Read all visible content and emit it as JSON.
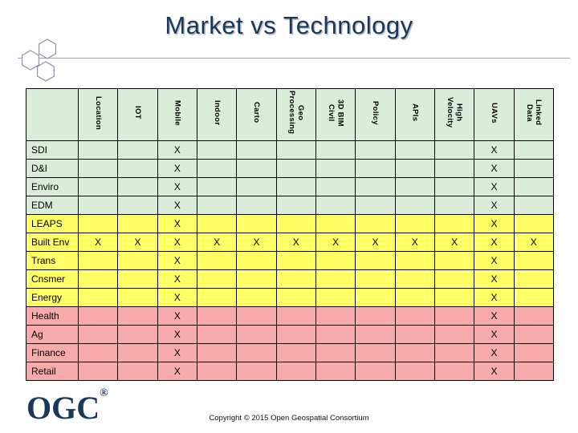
{
  "title": "Market vs Technology",
  "table": {
    "corner_label": "",
    "columns": [
      "Location",
      "IOT",
      "Mobile",
      "Indoor",
      "Carto",
      "Geo\nProcessing",
      "3D BIM\nCivil",
      "Policy",
      "APIs",
      "High\nVelocity",
      "UAVs",
      "Linked\nData"
    ],
    "mark_symbol": "X",
    "rows": [
      {
        "label": "SDI",
        "color_group": "green",
        "marked_columns": [
          2,
          10
        ]
      },
      {
        "label": "D&I",
        "color_group": "green",
        "marked_columns": [
          2,
          10
        ]
      },
      {
        "label": "Enviro",
        "color_group": "green",
        "marked_columns": [
          2,
          10
        ]
      },
      {
        "label": "EDM",
        "color_group": "green",
        "marked_columns": [
          2,
          10
        ]
      },
      {
        "label": "LEAPS",
        "color_group": "yellow",
        "marked_columns": [
          2,
          10
        ]
      },
      {
        "label": "Built Env",
        "color_group": "yellow",
        "marked_columns": [
          0,
          1,
          2,
          3,
          4,
          5,
          6,
          7,
          8,
          9,
          10,
          11
        ]
      },
      {
        "label": "Trans",
        "color_group": "yellow",
        "marked_columns": [
          2,
          10
        ]
      },
      {
        "label": "Cnsmer",
        "color_group": "yellow",
        "marked_columns": [
          2,
          10
        ]
      },
      {
        "label": "Energy",
        "color_group": "yellow",
        "marked_columns": [
          2,
          10
        ]
      },
      {
        "label": "Health",
        "color_group": "pink",
        "marked_columns": [
          2,
          10
        ]
      },
      {
        "label": "Ag",
        "color_group": "pink",
        "marked_columns": [
          2,
          10
        ]
      },
      {
        "label": "Finance",
        "color_group": "pink",
        "marked_columns": [
          2,
          10
        ]
      },
      {
        "label": "Retail",
        "color_group": "pink",
        "marked_columns": [
          2,
          10
        ]
      }
    ]
  },
  "colors": {
    "green": "#D9EDD9",
    "yellow": "#FFFF66",
    "pink": "#F9ABAB",
    "navy": "#17375D",
    "border": "#000000"
  },
  "footer": {
    "logo_text": "OGC",
    "registered_mark": "®",
    "copyright": "Copyright © 2015 Open Geospatial Consortium"
  }
}
